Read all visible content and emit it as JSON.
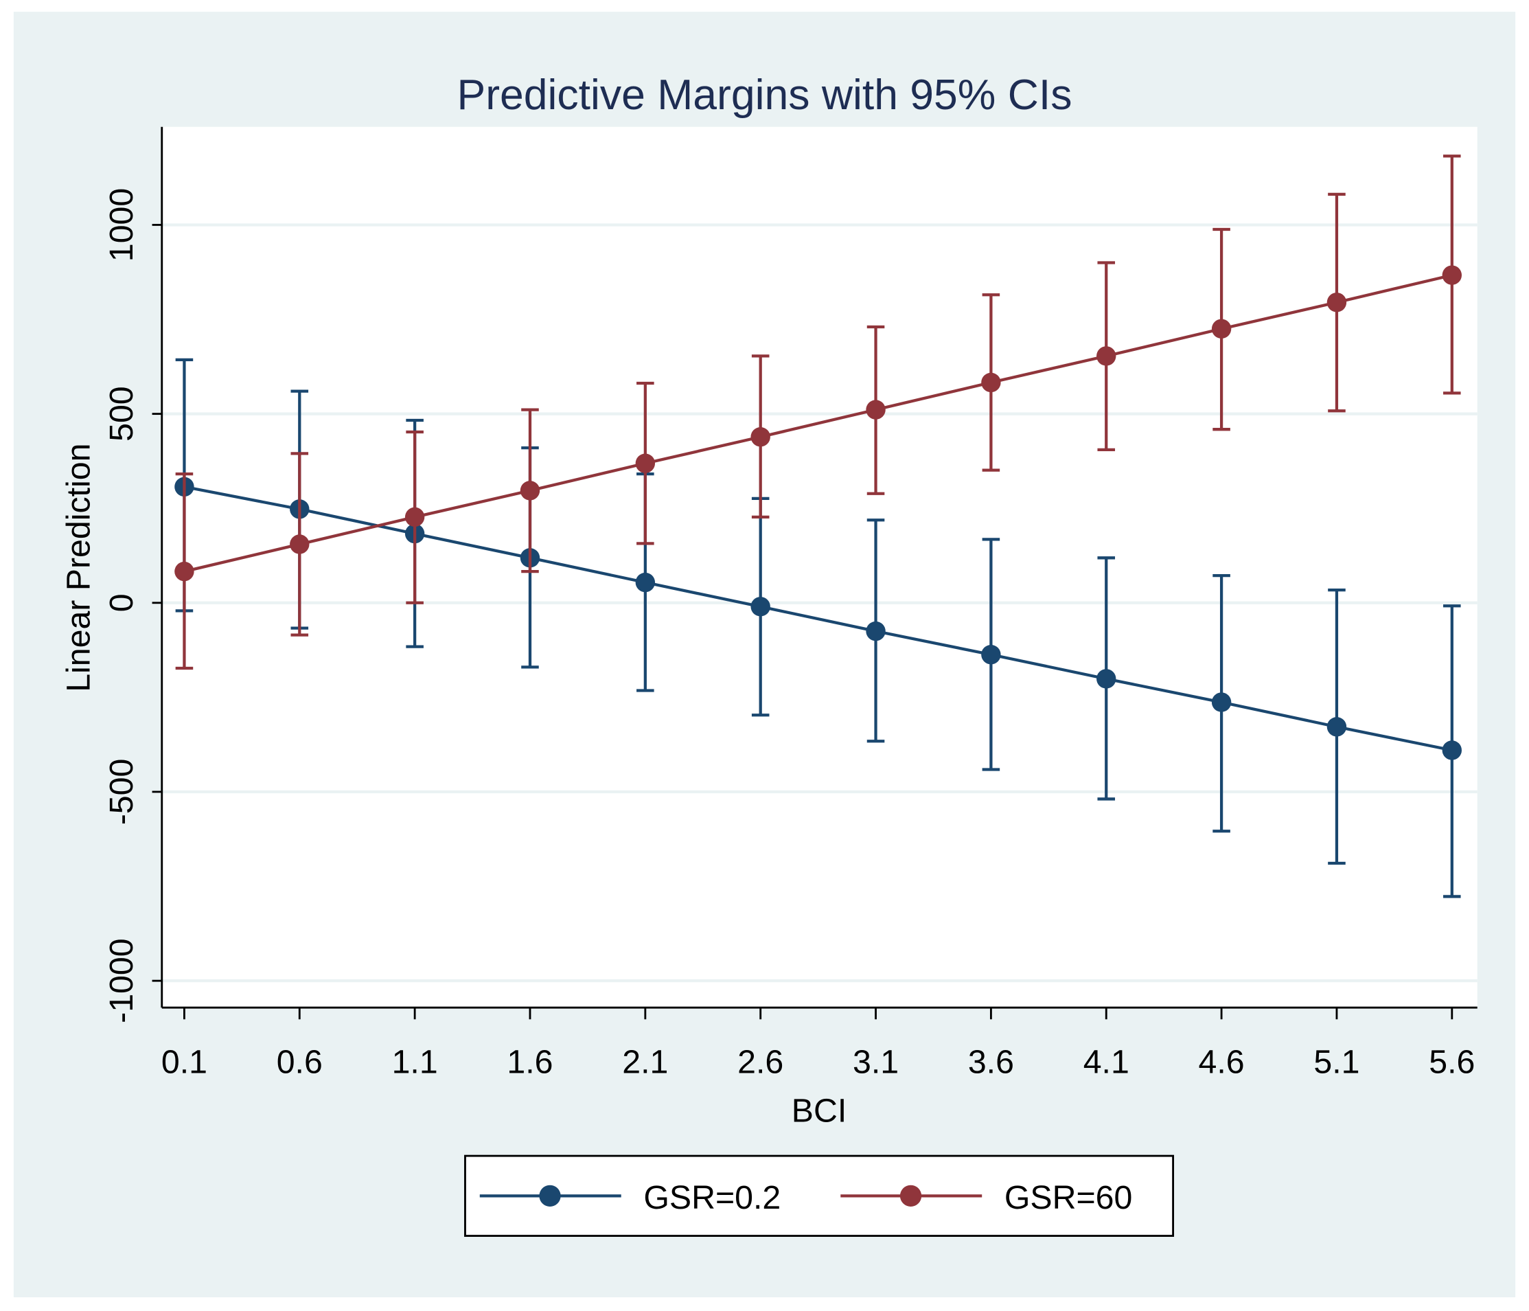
{
  "chart_data": {
    "type": "line",
    "title": "Predictive Margins with 95% CIs",
    "xlabel": "BCI",
    "ylabel": "Linear Prediction",
    "x": [
      0.1,
      0.6,
      1.1,
      1.6,
      2.1,
      2.6,
      3.1,
      3.6,
      4.1,
      4.6,
      5.1,
      5.6
    ],
    "x_tick_labels": [
      "0.1",
      "0.6",
      "1.1",
      "1.6",
      "2.1",
      "2.6",
      "3.1",
      "3.6",
      "4.1",
      "4.6",
      "5.1",
      "5.6"
    ],
    "y_ticks": [
      -1000,
      -500,
      0,
      500,
      1000
    ],
    "y_tick_labels": [
      "-1000",
      "-500",
      "0",
      "500",
      "1000"
    ],
    "ylim": [
      -1075,
      1250
    ],
    "xlim": [
      0.0,
      5.7
    ],
    "grid": true,
    "legend_position": "bottom",
    "series": [
      {
        "name": "GSR=0.2",
        "color": "#1a476f",
        "values": [
          307,
          248,
          183,
          119,
          54,
          -10,
          -75,
          -137,
          -201,
          -263,
          -328,
          -390
        ],
        "ci_upper": [
          643,
          560,
          483,
          410,
          341,
          276,
          219,
          168,
          119,
          72,
          34,
          -8
        ],
        "ci_lower": [
          -21,
          -67,
          -116,
          -170,
          -232,
          -297,
          -366,
          -441,
          -519,
          -604,
          -689,
          -777
        ]
      },
      {
        "name": "GSR=60",
        "color": "#90353b",
        "values": [
          83,
          155,
          227,
          297,
          369,
          439,
          511,
          583,
          653,
          725,
          795,
          867
        ],
        "ci_upper": [
          341,
          395,
          452,
          511,
          581,
          653,
          730,
          815,
          900,
          988,
          1081,
          1182
        ],
        "ci_lower": [
          -173,
          -85,
          0,
          83,
          157,
          227,
          289,
          351,
          405,
          459,
          508,
          555
        ]
      }
    ]
  }
}
